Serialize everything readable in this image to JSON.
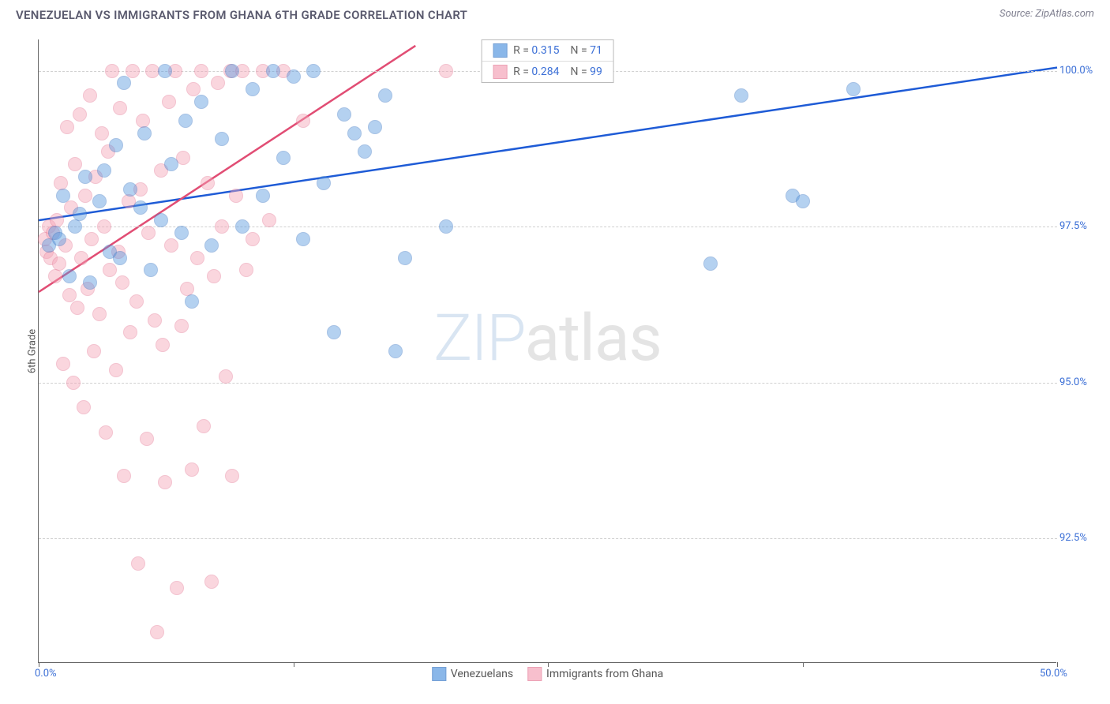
{
  "title": "VENEZUELAN VS IMMIGRANTS FROM GHANA 6TH GRADE CORRELATION CHART",
  "source": "Source: ZipAtlas.com",
  "y_axis_title": "6th Grade",
  "watermark": {
    "part1": "ZIP",
    "part2": "atlas"
  },
  "chart": {
    "type": "scatter",
    "xlim": [
      0,
      50
    ],
    "ylim": [
      90.5,
      100.5
    ],
    "x_ticks": [
      0,
      12.5,
      25,
      37.5,
      50
    ],
    "x_tick_labels": {
      "0": "0.0%",
      "50": "50.0%"
    },
    "y_ticks": [
      92.5,
      95.0,
      97.5,
      100.0
    ],
    "y_tick_labels": [
      "92.5%",
      "95.0%",
      "97.5%",
      "100.0%"
    ],
    "grid_color": "#d0d0d0",
    "background_color": "#ffffff",
    "axis_color": "#666666",
    "marker_radius": 9,
    "marker_opacity": 0.45,
    "series": [
      {
        "name": "Venezuelans",
        "color": "#5a9ae0",
        "stroke": "#3b78c4",
        "trend_color": "#1e5bd6",
        "trend_width": 2.5,
        "R": "0.315",
        "N": "71",
        "trend": {
          "x1": 0,
          "y1": 97.6,
          "x2": 50,
          "y2": 100.05
        },
        "points": [
          [
            0.5,
            97.2
          ],
          [
            0.8,
            97.4
          ],
          [
            1.0,
            97.3
          ],
          [
            1.2,
            98.0
          ],
          [
            1.5,
            96.7
          ],
          [
            1.8,
            97.5
          ],
          [
            2.0,
            97.7
          ],
          [
            2.3,
            98.3
          ],
          [
            2.5,
            96.6
          ],
          [
            3.0,
            97.9
          ],
          [
            3.2,
            98.4
          ],
          [
            3.5,
            97.1
          ],
          [
            3.8,
            98.8
          ],
          [
            4.0,
            97.0
          ],
          [
            4.2,
            99.8
          ],
          [
            4.5,
            98.1
          ],
          [
            5.0,
            97.8
          ],
          [
            5.2,
            99.0
          ],
          [
            5.5,
            96.8
          ],
          [
            6.0,
            97.6
          ],
          [
            6.2,
            100.0
          ],
          [
            6.5,
            98.5
          ],
          [
            7.0,
            97.4
          ],
          [
            7.2,
            99.2
          ],
          [
            7.5,
            96.3
          ],
          [
            8.0,
            99.5
          ],
          [
            8.5,
            97.2
          ],
          [
            9.0,
            98.9
          ],
          [
            9.5,
            100.0
          ],
          [
            10.0,
            97.5
          ],
          [
            10.5,
            99.7
          ],
          [
            11.0,
            98.0
          ],
          [
            11.5,
            100.0
          ],
          [
            12.0,
            98.6
          ],
          [
            12.5,
            99.9
          ],
          [
            13.0,
            97.3
          ],
          [
            13.5,
            100.0
          ],
          [
            14.0,
            98.2
          ],
          [
            14.5,
            95.8
          ],
          [
            15.0,
            99.3
          ],
          [
            15.5,
            99.0
          ],
          [
            16.0,
            98.7
          ],
          [
            16.5,
            99.1
          ],
          [
            17.0,
            99.6
          ],
          [
            17.5,
            95.5
          ],
          [
            18.0,
            97.0
          ],
          [
            20.0,
            97.5
          ],
          [
            34.5,
            99.6
          ],
          [
            33.0,
            96.9
          ],
          [
            37.0,
            98.0
          ],
          [
            37.5,
            97.9
          ],
          [
            40.0,
            99.7
          ]
        ]
      },
      {
        "name": "Immigrants from Ghana",
        "color": "#f4a5b8",
        "stroke": "#e57a96",
        "trend_color": "#e14d74",
        "trend_width": 2.5,
        "R": "0.284",
        "N": "99",
        "trend": {
          "x1": 0,
          "y1": 96.45,
          "x2": 18.5,
          "y2": 100.4
        },
        "points": [
          [
            0.3,
            97.3
          ],
          [
            0.4,
            97.1
          ],
          [
            0.5,
            97.5
          ],
          [
            0.6,
            97.0
          ],
          [
            0.7,
            97.4
          ],
          [
            0.8,
            96.7
          ],
          [
            0.9,
            97.6
          ],
          [
            1.0,
            96.9
          ],
          [
            1.1,
            98.2
          ],
          [
            1.2,
            95.3
          ],
          [
            1.3,
            97.2
          ],
          [
            1.4,
            99.1
          ],
          [
            1.5,
            96.4
          ],
          [
            1.6,
            97.8
          ],
          [
            1.7,
            95.0
          ],
          [
            1.8,
            98.5
          ],
          [
            1.9,
            96.2
          ],
          [
            2.0,
            99.3
          ],
          [
            2.1,
            97.0
          ],
          [
            2.2,
            94.6
          ],
          [
            2.3,
            98.0
          ],
          [
            2.4,
            96.5
          ],
          [
            2.5,
            99.6
          ],
          [
            2.6,
            97.3
          ],
          [
            2.7,
            95.5
          ],
          [
            2.8,
            98.3
          ],
          [
            3.0,
            96.1
          ],
          [
            3.1,
            99.0
          ],
          [
            3.2,
            97.5
          ],
          [
            3.3,
            94.2
          ],
          [
            3.4,
            98.7
          ],
          [
            3.5,
            96.8
          ],
          [
            3.6,
            100.0
          ],
          [
            3.8,
            95.2
          ],
          [
            3.9,
            97.1
          ],
          [
            4.0,
            99.4
          ],
          [
            4.1,
            96.6
          ],
          [
            4.2,
            93.5
          ],
          [
            4.4,
            97.9
          ],
          [
            4.5,
            95.8
          ],
          [
            4.6,
            100.0
          ],
          [
            4.8,
            96.3
          ],
          [
            4.9,
            92.1
          ],
          [
            5.0,
            98.1
          ],
          [
            5.1,
            99.2
          ],
          [
            5.3,
            94.1
          ],
          [
            5.4,
            97.4
          ],
          [
            5.6,
            100.0
          ],
          [
            5.7,
            96.0
          ],
          [
            5.8,
            91.0
          ],
          [
            6.0,
            98.4
          ],
          [
            6.1,
            95.6
          ],
          [
            6.2,
            93.4
          ],
          [
            6.4,
            99.5
          ],
          [
            6.5,
            97.2
          ],
          [
            6.7,
            100.0
          ],
          [
            6.8,
            91.7
          ],
          [
            7.0,
            95.9
          ],
          [
            7.1,
            98.6
          ],
          [
            7.3,
            96.5
          ],
          [
            7.5,
            93.6
          ],
          [
            7.6,
            99.7
          ],
          [
            7.8,
            97.0
          ],
          [
            8.0,
            100.0
          ],
          [
            8.1,
            94.3
          ],
          [
            8.3,
            98.2
          ],
          [
            8.5,
            91.8
          ],
          [
            8.6,
            96.7
          ],
          [
            8.8,
            99.8
          ],
          [
            9.0,
            97.5
          ],
          [
            9.2,
            95.1
          ],
          [
            9.4,
            100.0
          ],
          [
            9.5,
            93.5
          ],
          [
            9.7,
            98.0
          ],
          [
            10.0,
            100.0
          ],
          [
            10.2,
            96.8
          ],
          [
            10.5,
            97.3
          ],
          [
            11.0,
            100.0
          ],
          [
            11.3,
            97.6
          ],
          [
            12.0,
            100.0
          ],
          [
            13.0,
            99.2
          ],
          [
            20.0,
            100.0
          ]
        ]
      }
    ]
  },
  "legend_top": {
    "r_label": "R =",
    "n_label": "N ="
  },
  "colors": {
    "text_primary": "#5a5a6e",
    "text_blue": "#3b6fd6"
  }
}
